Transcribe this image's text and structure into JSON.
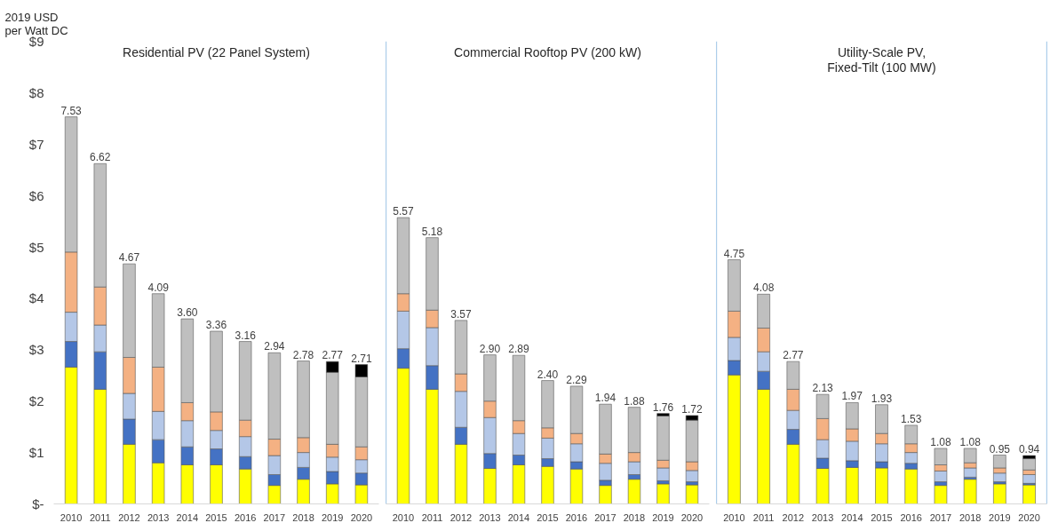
{
  "chart_data": [
    {
      "type": "bar",
      "stacked": true,
      "title": "Residential PV (22 Panel System)",
      "ylabel": "2019 USD\nper Watt DC",
      "categories": [
        "2010",
        "2011",
        "2012",
        "2013",
        "2014",
        "2015",
        "2016",
        "2017",
        "2018",
        "2019",
        "2020"
      ],
      "ylim": [
        0,
        9
      ],
      "yticks": [
        {
          "value": 0,
          "label": "$-"
        },
        {
          "value": 1,
          "label": "$1"
        },
        {
          "value": 2,
          "label": "$2"
        },
        {
          "value": 3,
          "label": "$3"
        },
        {
          "value": 4,
          "label": "$4"
        },
        {
          "value": 5,
          "label": "$5"
        },
        {
          "value": 6,
          "label": "$6"
        },
        {
          "value": 7,
          "label": "$7"
        },
        {
          "value": 8,
          "label": "$8"
        },
        {
          "value": 9,
          "label": "$9"
        }
      ],
      "grid": false,
      "series": [
        {
          "color": "#ffff00",
          "values": [
            2.66,
            2.23,
            1.16,
            0.8,
            0.76,
            0.76,
            0.68,
            0.36,
            0.48,
            0.39,
            0.37
          ]
        },
        {
          "color": "#4472c4",
          "values": [
            0.5,
            0.73,
            0.49,
            0.45,
            0.35,
            0.31,
            0.24,
            0.21,
            0.23,
            0.24,
            0.23
          ]
        },
        {
          "color": "#b4c7e7",
          "values": [
            0.57,
            0.52,
            0.5,
            0.55,
            0.51,
            0.36,
            0.39,
            0.37,
            0.29,
            0.28,
            0.26
          ]
        },
        {
          "color": "#f4b183",
          "values": [
            1.17,
            0.74,
            0.7,
            0.86,
            0.35,
            0.36,
            0.32,
            0.32,
            0.29,
            0.25,
            0.25
          ]
        },
        {
          "color": "#bfbfbf",
          "values": [
            2.63,
            2.4,
            1.82,
            1.43,
            1.63,
            1.57,
            1.53,
            1.68,
            1.49,
            1.4,
            1.36
          ]
        },
        {
          "color": "#000000",
          "values": [
            null,
            null,
            null,
            null,
            null,
            null,
            null,
            null,
            null,
            0.21,
            0.24
          ]
        }
      ],
      "totals": [
        "7.53",
        "6.62",
        "4.67",
        "4.09",
        "3.60",
        "3.36",
        "3.16",
        "2.94",
        "2.78",
        "2.77",
        "2.71"
      ]
    },
    {
      "type": "bar",
      "stacked": true,
      "title": "Commercial Rooftop PV (200 kW)",
      "categories": [
        "2010",
        "2011",
        "2012",
        "2013",
        "2014",
        "2015",
        "2016",
        "2017",
        "2018",
        "2019",
        "2020"
      ],
      "ylim": [
        0,
        9
      ],
      "tick_labels": "x",
      "grid": false,
      "series": [
        {
          "color": "#ffff00",
          "values": [
            2.64,
            2.23,
            1.16,
            0.69,
            0.76,
            0.73,
            0.68,
            0.36,
            0.48,
            0.39,
            0.37
          ]
        },
        {
          "color": "#4472c4",
          "values": [
            0.38,
            0.46,
            0.33,
            0.29,
            0.19,
            0.15,
            0.14,
            0.1,
            0.09,
            0.06,
            0.06
          ]
        },
        {
          "color": "#b4c7e7",
          "values": [
            0.73,
            0.74,
            0.7,
            0.7,
            0.42,
            0.4,
            0.35,
            0.33,
            0.25,
            0.25,
            0.22
          ]
        },
        {
          "color": "#f4b183",
          "values": [
            0.34,
            0.34,
            0.34,
            0.32,
            0.25,
            0.2,
            0.2,
            0.18,
            0.18,
            0.15,
            0.17
          ]
        },
        {
          "color": "#bfbfbf",
          "values": [
            1.48,
            1.41,
            1.04,
            0.9,
            1.27,
            0.92,
            0.92,
            0.97,
            0.88,
            0.86,
            0.81
          ]
        },
        {
          "color": "#000000",
          "values": [
            null,
            null,
            null,
            null,
            null,
            null,
            null,
            null,
            null,
            0.05,
            0.09
          ]
        }
      ],
      "totals": [
        "5.57",
        "5.18",
        "3.57",
        "2.90",
        "2.89",
        "2.40",
        "2.29",
        "1.94",
        "1.88",
        "1.76",
        "1.72"
      ]
    },
    {
      "type": "bar",
      "stacked": true,
      "title": "Utility-Scale PV,\nFixed-Tilt (100 MW)",
      "categories": [
        "2010",
        "2011",
        "2012",
        "2013",
        "2014",
        "2015",
        "2016",
        "2017",
        "2018",
        "2019",
        "2020"
      ],
      "ylim": [
        0,
        9
      ],
      "tick_labels": "x",
      "grid": false,
      "series": [
        {
          "color": "#ffff00",
          "values": [
            2.51,
            2.23,
            1.16,
            0.69,
            0.71,
            0.7,
            0.68,
            0.36,
            0.48,
            0.39,
            0.37
          ]
        },
        {
          "color": "#4472c4",
          "values": [
            0.28,
            0.35,
            0.29,
            0.2,
            0.13,
            0.12,
            0.11,
            0.07,
            0.04,
            0.04,
            0.03
          ]
        },
        {
          "color": "#b4c7e7",
          "values": [
            0.45,
            0.38,
            0.37,
            0.36,
            0.38,
            0.35,
            0.21,
            0.21,
            0.18,
            0.17,
            0.17
          ]
        },
        {
          "color": "#f4b183",
          "values": [
            0.51,
            0.46,
            0.41,
            0.41,
            0.24,
            0.2,
            0.17,
            0.12,
            0.1,
            0.1,
            0.09
          ]
        },
        {
          "color": "#bfbfbf",
          "values": [
            1.0,
            0.66,
            0.54,
            0.47,
            0.51,
            0.56,
            0.36,
            0.32,
            0.28,
            0.25,
            0.22
          ]
        },
        {
          "color": "#000000",
          "values": [
            null,
            null,
            null,
            null,
            null,
            null,
            null,
            null,
            null,
            null,
            0.06
          ]
        }
      ],
      "totals": [
        "4.75",
        "4.08",
        "2.77",
        "2.13",
        "1.97",
        "1.93",
        "1.53",
        "1.08",
        "1.08",
        "0.95",
        "0.94"
      ]
    }
  ]
}
